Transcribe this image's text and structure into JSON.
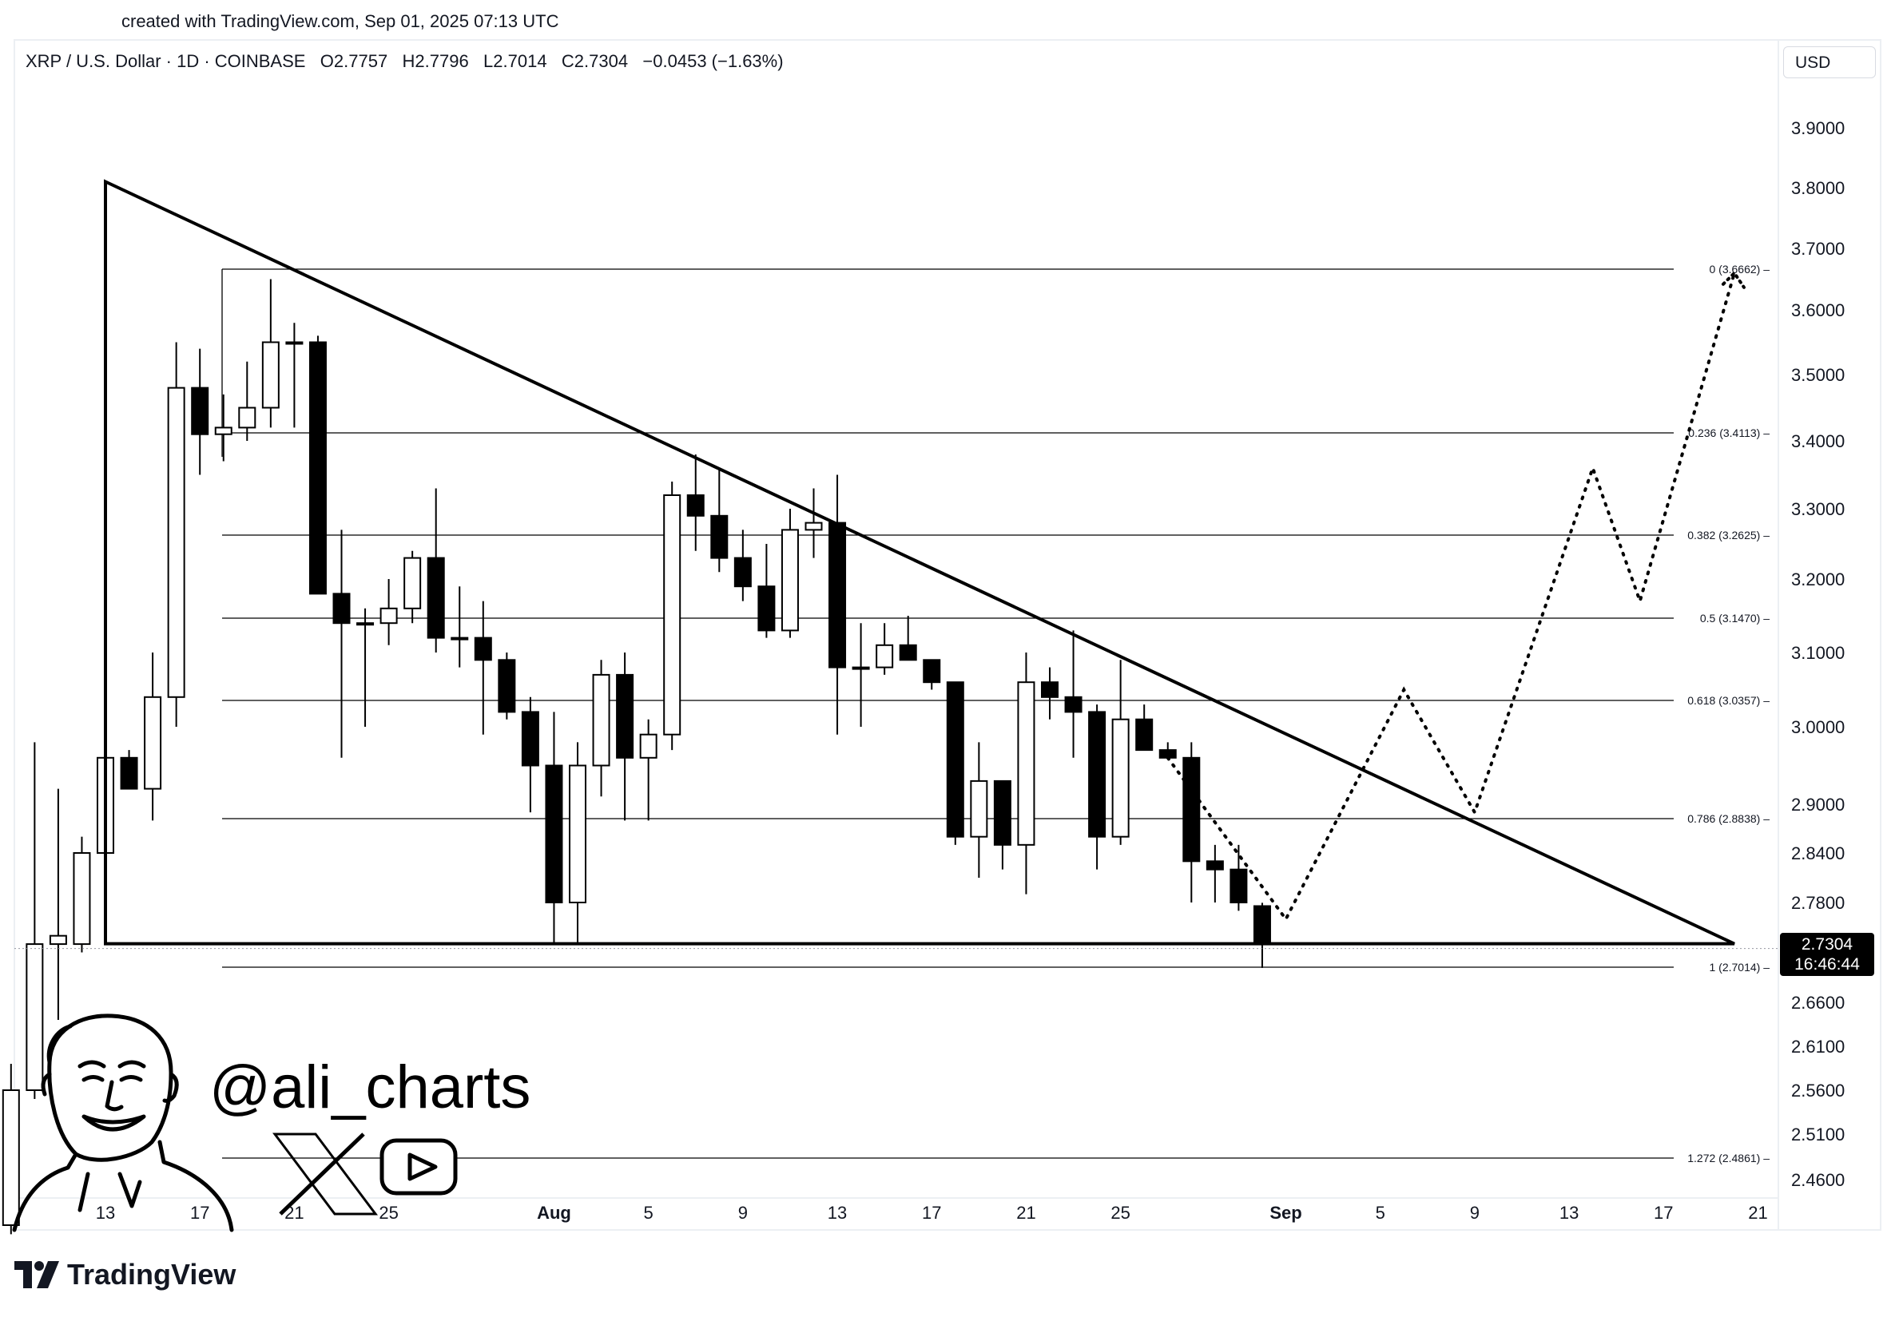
{
  "caption": "created with TradingView.com, Sep 01, 2025 07:13 UTC",
  "header": {
    "symbol": "XRP / U.S. Dollar · 1D · COINBASE",
    "ohlc": "O2.7757   H2.7796   L2.7014   C2.7304   −0.0453 (−1.63%)"
  },
  "currency_button": "USD",
  "price_tag": {
    "price": "2.7304",
    "countdown": "16:46:44"
  },
  "handle": "@ali_charts",
  "brand": "TradingView",
  "colors": {
    "down": "#000000",
    "up": "#ffffff",
    "line": "#000000",
    "text": "#131722"
  },
  "icons": [
    "x-logo-icon",
    "youtube-icon",
    "tradingview-logo-icon",
    "avatar-illustration"
  ],
  "chart_data": {
    "type": "candlestick",
    "y_ticks": [
      "3.9000",
      "3.8000",
      "3.7000",
      "3.6000",
      "3.5000",
      "3.4000",
      "3.3000",
      "3.2000",
      "3.1000",
      "3.0000",
      "2.9000",
      "2.8400",
      "2.7800",
      "2.6600",
      "2.6100",
      "2.5600",
      "2.5100",
      "2.4600"
    ],
    "x_ticks": [
      "13",
      "17",
      "21",
      "25",
      "Aug",
      "5",
      "9",
      "13",
      "17",
      "21",
      "25",
      "Sep",
      "5",
      "9",
      "13",
      "17",
      "21"
    ],
    "x_tick_dates": [
      "2025-07-13",
      "2025-07-17",
      "2025-07-21",
      "2025-07-25",
      "2025-08-01",
      "2025-08-05",
      "2025-08-09",
      "2025-08-13",
      "2025-08-17",
      "2025-08-21",
      "2025-08-25",
      "2025-09-01",
      "2025-09-05",
      "2025-09-09",
      "2025-09-13",
      "2025-09-17",
      "2025-09-21"
    ],
    "fib_levels": [
      {
        "label": "0 (3.6662)",
        "value": 3.6662
      },
      {
        "label": "0.236 (3.4113)",
        "value": 3.4113
      },
      {
        "label": "0.382 (3.2625)",
        "value": 3.2625
      },
      {
        "label": "0.5 (3.1470)",
        "value": 3.147
      },
      {
        "label": "0.618 (3.0357)",
        "value": 3.0357
      },
      {
        "label": "0.786 (2.8838)",
        "value": 2.8838
      },
      {
        "label": "1 (2.7014)",
        "value": 2.7014
      },
      {
        "label": "1.272 (2.4861)",
        "value": 2.4861
      }
    ],
    "candles": [
      {
        "date": "2025-07-09",
        "o": 2.41,
        "h": 2.59,
        "l": 2.4,
        "c": 2.56
      },
      {
        "date": "2025-07-10",
        "o": 2.56,
        "h": 2.98,
        "l": 2.55,
        "c": 2.73
      },
      {
        "date": "2025-07-11",
        "o": 2.73,
        "h": 2.92,
        "l": 2.64,
        "c": 2.74
      },
      {
        "date": "2025-07-12",
        "o": 2.73,
        "h": 2.86,
        "l": 2.72,
        "c": 2.84
      },
      {
        "date": "2025-07-13",
        "o": 2.84,
        "h": 3.04,
        "l": 2.81,
        "c": 2.96
      },
      {
        "date": "2025-07-14",
        "o": 2.96,
        "h": 2.97,
        "l": 2.92,
        "c": 2.92
      },
      {
        "date": "2025-07-15",
        "o": 2.92,
        "h": 3.1,
        "l": 2.88,
        "c": 3.04
      },
      {
        "date": "2025-07-16",
        "o": 3.04,
        "h": 3.55,
        "l": 3.0,
        "c": 3.48
      },
      {
        "date": "2025-07-17",
        "o": 3.48,
        "h": 3.54,
        "l": 3.35,
        "c": 3.41
      },
      {
        "date": "2025-07-18",
        "o": 3.41,
        "h": 3.47,
        "l": 3.37,
        "c": 3.42
      },
      {
        "date": "2025-07-19",
        "o": 3.42,
        "h": 3.52,
        "l": 3.4,
        "c": 3.45
      },
      {
        "date": "2025-07-20",
        "o": 3.45,
        "h": 3.65,
        "l": 3.42,
        "c": 3.55
      },
      {
        "date": "2025-07-21",
        "o": 3.55,
        "h": 3.58,
        "l": 3.42,
        "c": 3.55
      },
      {
        "date": "2025-07-22",
        "o": 3.55,
        "h": 3.56,
        "l": 3.18,
        "c": 3.18
      },
      {
        "date": "2025-07-23",
        "o": 3.18,
        "h": 3.27,
        "l": 2.96,
        "c": 3.14
      },
      {
        "date": "2025-07-24",
        "o": 3.14,
        "h": 3.16,
        "l": 3.0,
        "c": 3.14
      },
      {
        "date": "2025-07-25",
        "o": 3.14,
        "h": 3.2,
        "l": 3.11,
        "c": 3.16
      },
      {
        "date": "2025-07-26",
        "o": 3.16,
        "h": 3.24,
        "l": 3.14,
        "c": 3.23
      },
      {
        "date": "2025-07-27",
        "o": 3.23,
        "h": 3.33,
        "l": 3.1,
        "c": 3.12
      },
      {
        "date": "2025-07-28",
        "o": 3.12,
        "h": 3.19,
        "l": 3.08,
        "c": 3.12
      },
      {
        "date": "2025-07-29",
        "o": 3.12,
        "h": 3.17,
        "l": 2.99,
        "c": 3.09
      },
      {
        "date": "2025-07-30",
        "o": 3.09,
        "h": 3.1,
        "l": 3.01,
        "c": 3.02
      },
      {
        "date": "2025-07-31",
        "o": 3.02,
        "h": 3.04,
        "l": 2.89,
        "c": 2.95
      },
      {
        "date": "2025-08-01",
        "o": 2.95,
        "h": 3.02,
        "l": 2.73,
        "c": 2.78
      },
      {
        "date": "2025-08-02",
        "o": 2.78,
        "h": 2.98,
        "l": 2.73,
        "c": 2.95
      },
      {
        "date": "2025-08-03",
        "o": 2.95,
        "h": 3.09,
        "l": 2.91,
        "c": 3.07
      },
      {
        "date": "2025-08-04",
        "o": 3.07,
        "h": 3.1,
        "l": 2.88,
        "c": 2.96
      },
      {
        "date": "2025-08-05",
        "o": 2.96,
        "h": 3.01,
        "l": 2.88,
        "c": 2.99
      },
      {
        "date": "2025-08-06",
        "o": 2.99,
        "h": 3.34,
        "l": 2.97,
        "c": 3.32
      },
      {
        "date": "2025-08-07",
        "o": 3.32,
        "h": 3.38,
        "l": 3.24,
        "c": 3.29
      },
      {
        "date": "2025-08-08",
        "o": 3.29,
        "h": 3.36,
        "l": 3.21,
        "c": 3.23
      },
      {
        "date": "2025-08-09",
        "o": 3.23,
        "h": 3.27,
        "l": 3.17,
        "c": 3.19
      },
      {
        "date": "2025-08-10",
        "o": 3.19,
        "h": 3.25,
        "l": 3.12,
        "c": 3.13
      },
      {
        "date": "2025-08-11",
        "o": 3.13,
        "h": 3.3,
        "l": 3.12,
        "c": 3.27
      },
      {
        "date": "2025-08-12",
        "o": 3.27,
        "h": 3.33,
        "l": 3.23,
        "c": 3.28
      },
      {
        "date": "2025-08-13",
        "o": 3.28,
        "h": 3.35,
        "l": 2.99,
        "c": 3.08
      },
      {
        "date": "2025-08-14",
        "o": 3.08,
        "h": 3.14,
        "l": 3.0,
        "c": 3.08
      },
      {
        "date": "2025-08-15",
        "o": 3.08,
        "h": 3.14,
        "l": 3.07,
        "c": 3.11
      },
      {
        "date": "2025-08-16",
        "o": 3.11,
        "h": 3.15,
        "l": 3.09,
        "c": 3.09
      },
      {
        "date": "2025-08-17",
        "o": 3.09,
        "h": 3.09,
        "l": 3.05,
        "c": 3.06
      },
      {
        "date": "2025-08-18",
        "o": 3.06,
        "h": 3.06,
        "l": 2.85,
        "c": 2.86
      },
      {
        "date": "2025-08-19",
        "o": 2.86,
        "h": 2.98,
        "l": 2.81,
        "c": 2.93
      },
      {
        "date": "2025-08-20",
        "o": 2.93,
        "h": 2.93,
        "l": 2.82,
        "c": 2.85
      },
      {
        "date": "2025-08-21",
        "o": 2.85,
        "h": 3.1,
        "l": 2.79,
        "c": 3.06
      },
      {
        "date": "2025-08-22",
        "o": 3.06,
        "h": 3.08,
        "l": 3.01,
        "c": 3.04
      },
      {
        "date": "2025-08-23",
        "o": 3.04,
        "h": 3.13,
        "l": 2.96,
        "c": 3.02
      },
      {
        "date": "2025-08-24",
        "o": 3.02,
        "h": 3.03,
        "l": 2.82,
        "c": 2.86
      },
      {
        "date": "2025-08-25",
        "o": 2.86,
        "h": 3.09,
        "l": 2.85,
        "c": 3.01
      },
      {
        "date": "2025-08-26",
        "o": 3.01,
        "h": 3.03,
        "l": 2.97,
        "c": 2.97
      },
      {
        "date": "2025-08-27",
        "o": 2.97,
        "h": 2.98,
        "l": 2.96,
        "c": 2.96
      },
      {
        "date": "2025-08-28",
        "o": 2.96,
        "h": 2.98,
        "l": 2.78,
        "c": 2.83
      },
      {
        "date": "2025-08-29",
        "o": 2.83,
        "h": 2.85,
        "l": 2.78,
        "c": 2.82
      },
      {
        "date": "2025-08-30",
        "o": 2.82,
        "h": 2.85,
        "l": 2.77,
        "c": 2.78
      },
      {
        "date": "2025-08-31",
        "o": 2.7757,
        "h": 2.7796,
        "l": 2.7014,
        "c": 2.7304
      }
    ],
    "triangle": {
      "apex_top": {
        "date": "2025-07-13",
        "value": 3.81
      },
      "base_left": {
        "date": "2025-07-13",
        "value": 2.7304
      },
      "base_right": {
        "date": "2025-09-20",
        "value": 2.7304
      }
    },
    "projection_path": [
      {
        "date": "2025-08-27",
        "value": 2.96
      },
      {
        "date": "2025-09-01",
        "value": 2.76
      },
      {
        "date": "2025-09-06",
        "value": 3.05
      },
      {
        "date": "2025-09-09",
        "value": 2.89
      },
      {
        "date": "2025-09-14",
        "value": 3.36
      },
      {
        "date": "2025-09-16",
        "value": 3.17
      },
      {
        "date": "2025-09-20",
        "value": 3.66
      }
    ]
  }
}
